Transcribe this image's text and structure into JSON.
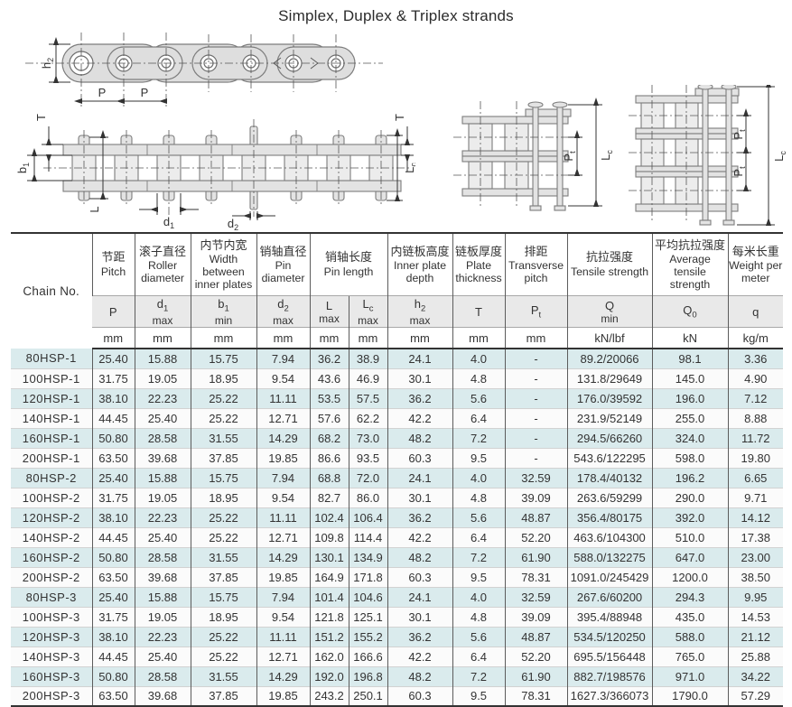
{
  "title": "Simplex, Duplex & Triplex strands",
  "diagrams": {
    "side_view": {
      "h_sym": "h",
      "h_sub": "2",
      "p1": "P",
      "p2": "P"
    },
    "plan_view": {
      "t_left": "T",
      "b_sym": "b",
      "b_sub": "1",
      "l": "L",
      "d1_sym": "d",
      "d1_sub": "1",
      "d2_sym": "d",
      "d2_sub": "2",
      "t_right": "T",
      "lc_sym": "L",
      "lc_sub": "c"
    },
    "duplex": {
      "pt_sym": "P",
      "pt_sub": "t",
      "lc_sym": "L",
      "lc_sub": "c"
    },
    "triplex": {
      "pt1_sym": "P",
      "pt1_sub": "t",
      "pt2_sym": "P",
      "pt2_sub": "t",
      "lc_sym": "L",
      "lc_sub": "c"
    }
  },
  "table": {
    "chain_no_header": "Chain No.",
    "groups": [
      {
        "cn": "节距",
        "en": "Pitch",
        "span": 1
      },
      {
        "cn": "滚子直径",
        "en": "Roller diameter",
        "span": 1
      },
      {
        "cn": "内节内宽",
        "en": "Width between inner plates",
        "span": 1
      },
      {
        "cn": "销轴直径",
        "en": "Pin diameter",
        "span": 1
      },
      {
        "cn": "销轴长度",
        "en": "Pin length",
        "span": 2
      },
      {
        "cn": "内链板高度",
        "en": "Inner plate depth",
        "span": 1
      },
      {
        "cn": "链板厚度",
        "en": "Plate thickness",
        "span": 1
      },
      {
        "cn": "排距",
        "en": "Transverse pitch",
        "span": 1
      },
      {
        "cn": "抗拉强度",
        "en": "Tensile strength",
        "span": 1
      },
      {
        "cn": "平均抗拉强度",
        "en": "Average tensile strength",
        "span": 1
      },
      {
        "cn": "每米长重",
        "en": "Weight per meter",
        "span": 1
      }
    ],
    "symbols": [
      {
        "sym": "P",
        "sub": "",
        "lim": ""
      },
      {
        "sym": "d",
        "sub": "1",
        "lim": "max"
      },
      {
        "sym": "b",
        "sub": "1",
        "lim": "min"
      },
      {
        "sym": "d",
        "sub": "2",
        "lim": "max"
      },
      {
        "sym": "L",
        "sub": "",
        "lim": "max"
      },
      {
        "sym": "L",
        "sub": "c",
        "lim": "max"
      },
      {
        "sym": "h",
        "sub": "2",
        "lim": "max"
      },
      {
        "sym": "T",
        "sub": "",
        "lim": ""
      },
      {
        "sym": "P",
        "sub": "t",
        "lim": ""
      },
      {
        "sym": "Q",
        "sub": "",
        "lim": "min"
      },
      {
        "sym": "Q",
        "sub": "0",
        "lim": ""
      },
      {
        "sym": "q",
        "sub": "",
        "lim": ""
      }
    ],
    "units": [
      "mm",
      "mm",
      "mm",
      "mm",
      "mm",
      "mm",
      "mm",
      "mm",
      "mm",
      "kN/lbf",
      "kN",
      "kg/m"
    ],
    "rows": [
      [
        "80HSP-1",
        "25.40",
        "15.88",
        "15.75",
        "7.94",
        "36.2",
        "38.9",
        "24.1",
        "4.0",
        "-",
        "89.2/20066",
        "98.1",
        "3.36"
      ],
      [
        "100HSP-1",
        "31.75",
        "19.05",
        "18.95",
        "9.54",
        "43.6",
        "46.9",
        "30.1",
        "4.8",
        "-",
        "131.8/29649",
        "145.0",
        "4.90"
      ],
      [
        "120HSP-1",
        "38.10",
        "22.23",
        "25.22",
        "11.11",
        "53.5",
        "57.5",
        "36.2",
        "5.6",
        "-",
        "176.0/39592",
        "196.0",
        "7.12"
      ],
      [
        "140HSP-1",
        "44.45",
        "25.40",
        "25.22",
        "12.71",
        "57.6",
        "62.2",
        "42.2",
        "6.4",
        "-",
        "231.9/52149",
        "255.0",
        "8.88"
      ],
      [
        "160HSP-1",
        "50.80",
        "28.58",
        "31.55",
        "14.29",
        "68.2",
        "73.0",
        "48.2",
        "7.2",
        "-",
        "294.5/66260",
        "324.0",
        "11.72"
      ],
      [
        "200HSP-1",
        "63.50",
        "39.68",
        "37.85",
        "19.85",
        "86.6",
        "93.5",
        "60.3",
        "9.5",
        "-",
        "543.6/122295",
        "598.0",
        "19.80"
      ],
      [
        "80HSP-2",
        "25.40",
        "15.88",
        "15.75",
        "7.94",
        "68.8",
        "72.0",
        "24.1",
        "4.0",
        "32.59",
        "178.4/40132",
        "196.2",
        "6.65"
      ],
      [
        "100HSP-2",
        "31.75",
        "19.05",
        "18.95",
        "9.54",
        "82.7",
        "86.0",
        "30.1",
        "4.8",
        "39.09",
        "263.6/59299",
        "290.0",
        "9.71"
      ],
      [
        "120HSP-2",
        "38.10",
        "22.23",
        "25.22",
        "11.11",
        "102.4",
        "106.4",
        "36.2",
        "5.6",
        "48.87",
        "356.4/80175",
        "392.0",
        "14.12"
      ],
      [
        "140HSP-2",
        "44.45",
        "25.40",
        "25.22",
        "12.71",
        "109.8",
        "114.4",
        "42.2",
        "6.4",
        "52.20",
        "463.6/104300",
        "510.0",
        "17.38"
      ],
      [
        "160HSP-2",
        "50.80",
        "28.58",
        "31.55",
        "14.29",
        "130.1",
        "134.9",
        "48.2",
        "7.2",
        "61.90",
        "588.0/132275",
        "647.0",
        "23.00"
      ],
      [
        "200HSP-2",
        "63.50",
        "39.68",
        "37.85",
        "19.85",
        "164.9",
        "171.8",
        "60.3",
        "9.5",
        "78.31",
        "1091.0/245429",
        "1200.0",
        "38.50"
      ],
      [
        "80HSP-3",
        "25.40",
        "15.88",
        "15.75",
        "7.94",
        "101.4",
        "104.6",
        "24.1",
        "4.0",
        "32.59",
        "267.6/60200",
        "294.3",
        "9.95"
      ],
      [
        "100HSP-3",
        "31.75",
        "19.05",
        "18.95",
        "9.54",
        "121.8",
        "125.1",
        "30.1",
        "4.8",
        "39.09",
        "395.4/88948",
        "435.0",
        "14.53"
      ],
      [
        "120HSP-3",
        "38.10",
        "22.23",
        "25.22",
        "11.11",
        "151.2",
        "155.2",
        "36.2",
        "5.6",
        "48.87",
        "534.5/120250",
        "588.0",
        "21.12"
      ],
      [
        "140HSP-3",
        "44.45",
        "25.40",
        "25.22",
        "12.71",
        "162.0",
        "166.6",
        "42.2",
        "6.4",
        "52.20",
        "695.5/156448",
        "765.0",
        "25.88"
      ],
      [
        "160HSP-3",
        "50.80",
        "28.58",
        "31.55",
        "14.29",
        "192.0",
        "196.8",
        "48.2",
        "7.2",
        "61.90",
        "882.7/198576",
        "971.0",
        "34.22"
      ],
      [
        "200HSP-3",
        "63.50",
        "39.68",
        "37.85",
        "19.85",
        "243.2",
        "250.1",
        "60.3",
        "9.5",
        "78.31",
        "1627.3/366073",
        "1790.0",
        "57.29"
      ]
    ]
  }
}
